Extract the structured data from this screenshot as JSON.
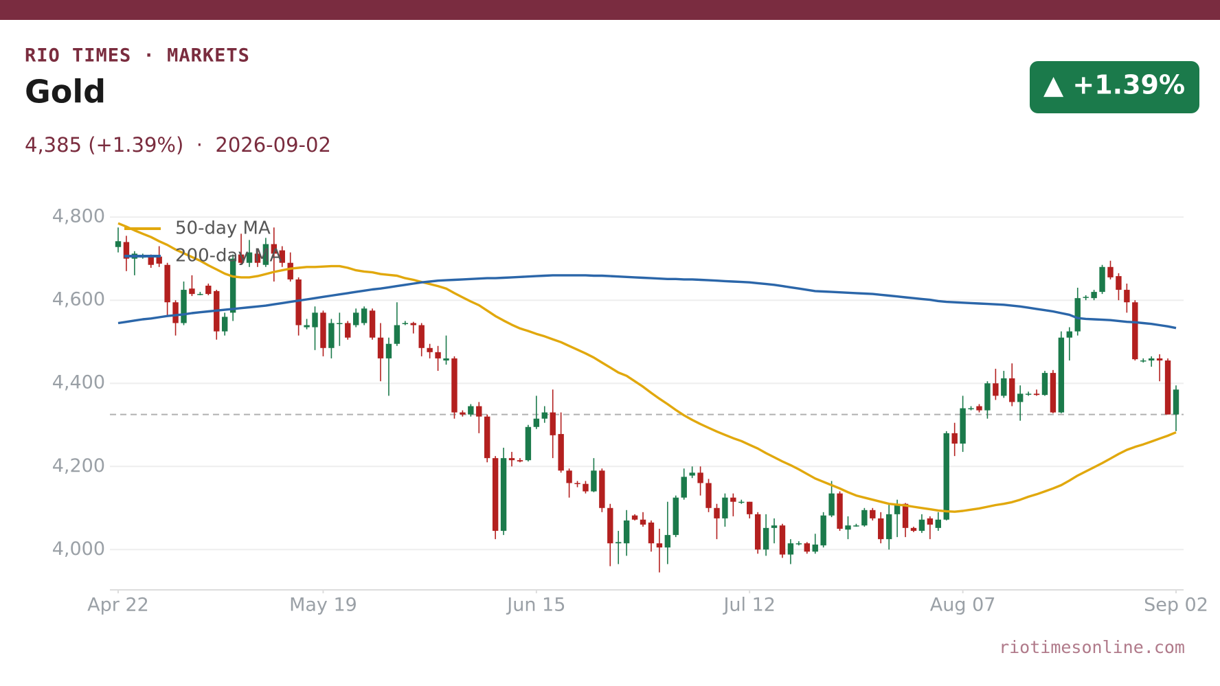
{
  "header": {
    "brand": "RIO TIMES · MARKETS",
    "subtitle": "4,385 (+1.39%)  ·  2026-09-02",
    "badge": "▲ +1.39%",
    "footer": "riotimesonline.com"
  },
  "chart_data": {
    "type": "candlestick",
    "title": "Gold",
    "up_color": "#1b7a4b",
    "down_color": "#b3201f",
    "grid": true,
    "legend": "upper left",
    "ylim": [
      3903,
      4830
    ],
    "yticks": [
      {
        "value": 4000,
        "label": "4,000"
      },
      {
        "value": 4200,
        "label": "4,200"
      },
      {
        "value": 4400,
        "label": "4,400"
      },
      {
        "value": 4600,
        "label": "4,600"
      },
      {
        "value": 4800,
        "label": "4,800"
      }
    ],
    "xticks": [
      {
        "value": 0,
        "label": "Apr 22"
      },
      {
        "value": 25,
        "label": "May 19"
      },
      {
        "value": 51,
        "label": "Jun 15"
      },
      {
        "value": 77,
        "label": "Jul 12"
      },
      {
        "value": 103,
        "label": "Aug 07"
      },
      {
        "value": 129,
        "label": "Sep 02"
      }
    ],
    "reference_line": 4325,
    "open": [
      4728,
      4740,
      4700,
      4705,
      4705,
      4705,
      4685,
      4595,
      4545,
      4628,
      4615,
      4635,
      4622,
      4525,
      4570,
      4710,
      4690,
      4712,
      4685,
      4735,
      4720,
      4690,
      4650,
      4535,
      4535,
      4570,
      4485,
      4545,
      4545,
      4540,
      4545,
      4575,
      4510,
      4460,
      4495,
      4545,
      4545,
      4540,
      4485,
      4475,
      4455,
      4460,
      4330,
      4325,
      4345,
      4320,
      4220,
      4045,
      4220,
      4215,
      4215,
      4295,
      4315,
      4330,
      4278,
      4190,
      4160,
      4158,
      4140,
      4190,
      4100,
      4015,
      4015,
      4082,
      4072,
      4065,
      4015,
      4005,
      4035,
      4125,
      4178,
      4185,
      4160,
      4100,
      4075,
      4125,
      4115,
      4115,
      4085,
      4000,
      4052,
      4058,
      3988,
      4015,
      4015,
      3995,
      4010,
      4082,
      4135,
      4048,
      4058,
      4058,
      4095,
      4075,
      4025,
      4085,
      4110,
      4052,
      4045,
      4075,
      4052,
      4072,
      4280,
      4255,
      4340,
      4345,
      4335,
      4400,
      4370,
      4412,
      4355,
      4375,
      4375,
      4372,
      4425,
      4330,
      4510,
      4525,
      4608,
      4605,
      4620,
      4680,
      4658,
      4625,
      4595,
      4455,
      4455,
      4460,
      4455,
      4325
    ],
    "high": [
      4775,
      4755,
      4718,
      4712,
      4710,
      4730,
      4690,
      4600,
      4645,
      4660,
      4620,
      4640,
      4625,
      4570,
      4710,
      4760,
      4745,
      4720,
      4750,
      4775,
      4730,
      4715,
      4655,
      4555,
      4585,
      4575,
      4555,
      4570,
      4550,
      4580,
      4585,
      4580,
      4545,
      4510,
      4595,
      4550,
      4548,
      4545,
      4495,
      4490,
      4515,
      4465,
      4335,
      4350,
      4355,
      4325,
      4225,
      4245,
      4235,
      4220,
      4300,
      4370,
      4345,
      4385,
      4330,
      4195,
      4165,
      4165,
      4220,
      4195,
      4110,
      4045,
      4095,
      4085,
      4090,
      4070,
      4050,
      4115,
      4130,
      4195,
      4200,
      4200,
      4170,
      4110,
      4135,
      4135,
      4120,
      4115,
      4090,
      4085,
      4075,
      4062,
      4025,
      4020,
      4018,
      4038,
      4090,
      4165,
      4140,
      4080,
      4062,
      4100,
      4100,
      4090,
      4112,
      4120,
      4112,
      4055,
      4085,
      4080,
      4090,
      4285,
      4305,
      4370,
      4345,
      4350,
      4405,
      4435,
      4430,
      4448,
      4395,
      4380,
      4385,
      4430,
      4432,
      4525,
      4535,
      4630,
      4612,
      4625,
      4685,
      4695,
      4665,
      4640,
      4600,
      4460,
      4465,
      4470,
      4460,
      4395
    ],
    "low": [
      4715,
      4670,
      4660,
      4700,
      4678,
      4680,
      4560,
      4515,
      4540,
      4610,
      4612,
      4612,
      4505,
      4515,
      4550,
      4685,
      4680,
      4680,
      4680,
      4645,
      4680,
      4645,
      4515,
      4530,
      4480,
      4465,
      4460,
      4490,
      4505,
      4535,
      4540,
      4505,
      4405,
      4370,
      4490,
      4540,
      4520,
      4465,
      4460,
      4430,
      4445,
      4315,
      4320,
      4320,
      4280,
      4210,
      4025,
      4035,
      4200,
      4210,
      4212,
      4290,
      4305,
      4220,
      4185,
      4125,
      4150,
      4135,
      4138,
      4090,
      3960,
      3965,
      3985,
      4070,
      4055,
      3995,
      3945,
      3965,
      4030,
      4120,
      4172,
      4130,
      4090,
      4025,
      4055,
      4080,
      4110,
      4075,
      3990,
      3985,
      4015,
      3980,
      3965,
      4010,
      3990,
      3990,
      4005,
      4078,
      4045,
      4025,
      4055,
      4055,
      4070,
      4015,
      4000,
      4030,
      4030,
      4042,
      4040,
      4025,
      4045,
      4070,
      4225,
      4235,
      4335,
      4330,
      4315,
      4360,
      4365,
      4345,
      4310,
      4370,
      4370,
      4370,
      4328,
      4328,
      4455,
      4515,
      4600,
      4600,
      4615,
      4650,
      4600,
      4570,
      4455,
      4450,
      4440,
      4405,
      4325,
      4285
    ],
    "close": [
      4742,
      4700,
      4712,
      4705,
      4685,
      4688,
      4595,
      4545,
      4625,
      4615,
      4615,
      4615,
      4525,
      4560,
      4700,
      4690,
      4715,
      4690,
      4735,
      4712,
      4690,
      4650,
      4540,
      4540,
      4570,
      4485,
      4545,
      4545,
      4510,
      4570,
      4580,
      4510,
      4460,
      4495,
      4540,
      4545,
      4540,
      4485,
      4475,
      4460,
      4460,
      4330,
      4325,
      4345,
      4320,
      4220,
      4045,
      4220,
      4215,
      4212,
      4295,
      4315,
      4330,
      4275,
      4190,
      4160,
      4158,
      4140,
      4190,
      4100,
      4015,
      4018,
      4070,
      4072,
      4060,
      4015,
      4005,
      4035,
      4125,
      4175,
      4185,
      4160,
      4100,
      4075,
      4125,
      4115,
      4115,
      4085,
      4000,
      4052,
      4058,
      3988,
      4015,
      4015,
      3995,
      4012,
      4082,
      4135,
      4050,
      4058,
      4058,
      4095,
      4075,
      4025,
      4085,
      4110,
      4052,
      4045,
      4072,
      4060,
      4072,
      4280,
      4255,
      4340,
      4340,
      4335,
      4400,
      4370,
      4412,
      4355,
      4375,
      4375,
      4372,
      4425,
      4330,
      4510,
      4525,
      4605,
      4608,
      4620,
      4680,
      4655,
      4625,
      4595,
      4458,
      4455,
      4460,
      4455,
      4325,
      4385
    ],
    "lines": [
      {
        "name": "50-day MA",
        "color": "#e1a80d",
        "values": [
          4785,
          4777,
          4768,
          4760,
          4752,
          4742,
          4733,
          4722,
          4713,
          4704,
          4695,
          4684,
          4674,
          4664,
          4657,
          4655,
          4655,
          4658,
          4663,
          4668,
          4672,
          4676,
          4678,
          4680,
          4680,
          4681,
          4682,
          4682,
          4678,
          4672,
          4669,
          4667,
          4663,
          4661,
          4659,
          4653,
          4649,
          4644,
          4639,
          4634,
          4628,
          4617,
          4607,
          4597,
          4588,
          4575,
          4562,
          4551,
          4541,
          4532,
          4526,
          4519,
          4513,
          4506,
          4499,
          4490,
          4481,
          4472,
          4462,
          4450,
          4438,
          4426,
          4418,
          4405,
          4392,
          4377,
          4363,
          4350,
          4336,
          4323,
          4312,
          4302,
          4293,
          4284,
          4276,
          4268,
          4261,
          4252,
          4243,
          4232,
          4222,
          4212,
          4203,
          4193,
          4182,
          4171,
          4163,
          4155,
          4147,
          4138,
          4130,
          4125,
          4120,
          4115,
          4110,
          4108,
          4106,
          4103,
          4100,
          4097,
          4094,
          4092,
          4091,
          4093,
          4096,
          4099,
          4103,
          4107,
          4110,
          4114,
          4120,
          4127,
          4133,
          4140,
          4147,
          4155,
          4166,
          4178,
          4188,
          4198,
          4208,
          4219,
          4230,
          4240,
          4247,
          4253,
          4260,
          4267,
          4274,
          4282
        ]
      },
      {
        "name": "200-day MA",
        "color": "#2b66a9",
        "values": [
          4545,
          4548,
          4551,
          4554,
          4556,
          4559,
          4562,
          4564,
          4566,
          4569,
          4571,
          4573,
          4575,
          4577,
          4579,
          4581,
          4583,
          4585,
          4587,
          4590,
          4593,
          4596,
          4599,
          4602,
          4605,
          4608,
          4611,
          4614,
          4617,
          4620,
          4623,
          4626,
          4628,
          4631,
          4634,
          4637,
          4640,
          4643,
          4645,
          4647,
          4648,
          4649,
          4650,
          4651,
          4652,
          4653,
          4653,
          4654,
          4655,
          4656,
          4657,
          4658,
          4659,
          4660,
          4660,
          4660,
          4660,
          4660,
          4659,
          4659,
          4658,
          4657,
          4656,
          4655,
          4654,
          4653,
          4652,
          4651,
          4651,
          4650,
          4650,
          4649,
          4648,
          4647,
          4646,
          4645,
          4644,
          4643,
          4641,
          4639,
          4637,
          4634,
          4631,
          4628,
          4625,
          4622,
          4621,
          4620,
          4619,
          4618,
          4617,
          4616,
          4615,
          4613,
          4611,
          4609,
          4607,
          4605,
          4603,
          4601,
          4598,
          4596,
          4595,
          4594,
          4593,
          4592,
          4591,
          4590,
          4589,
          4587,
          4585,
          4582,
          4579,
          4576,
          4573,
          4569,
          4565,
          4557,
          4555,
          4554,
          4553,
          4552,
          4550,
          4548,
          4547,
          4545,
          4543,
          4540,
          4537,
          4533
        ]
      }
    ]
  }
}
